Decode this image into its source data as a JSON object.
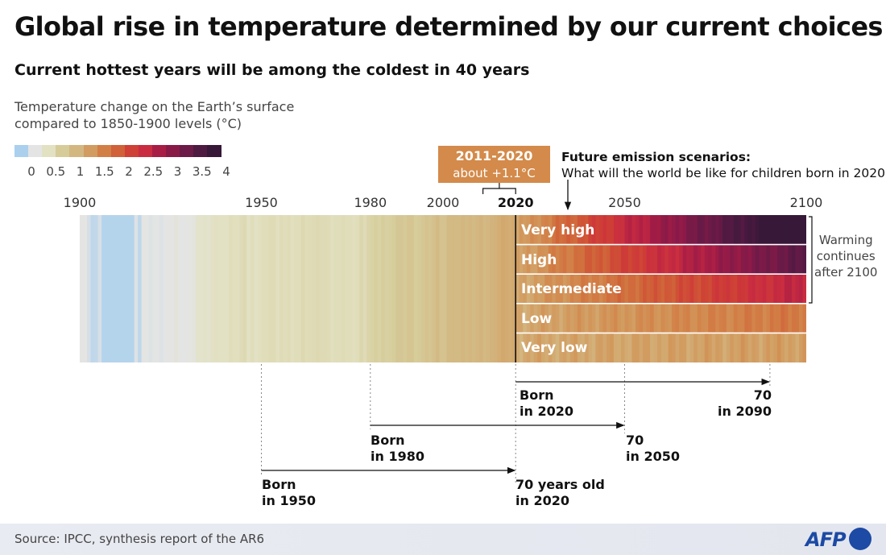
{
  "title": "Global rise in temperature determined by our current choices",
  "subtitle": "Current hottest years will be among the coldest in 40 years",
  "unit_label": [
    "Temperature change on the Earth’s surface",
    "compared to 1850-1900 levels (°C)"
  ],
  "legend": {
    "ticks": [
      "0",
      "0.5",
      "1",
      "1.5",
      "2",
      "2.5",
      "3",
      "3.5",
      "4"
    ],
    "tick_values": [
      0,
      0.5,
      1,
      1.5,
      2,
      2.5,
      3,
      3.5,
      4
    ]
  },
  "callout_period": {
    "line1": "2011-2020",
    "line2": "about +1.1°C"
  },
  "future_note": {
    "line1": "Future emission scenarios:",
    "line2": "What will the world be like for children born in 2020?"
  },
  "year_axis": {
    "labels": [
      "1900",
      "1950",
      "1980",
      "2000",
      "2020",
      "2050",
      "2100"
    ],
    "values": [
      1900,
      1950,
      1980,
      2000,
      2020,
      2050,
      2100
    ],
    "highlight": "2020"
  },
  "scenario_note": [
    "Warming",
    "continues",
    "after 2100"
  ],
  "lifespans": [
    {
      "born_line1": "Born",
      "born_line2": "in 2020",
      "end_line1": "70",
      "end_line2": "in 2090"
    },
    {
      "born_line1": "Born",
      "born_line2": "in 1980",
      "end_line1": "70",
      "end_line2": "in 2050"
    },
    {
      "born_line1": "Born",
      "born_line2": "in 1950",
      "end_line1": "70 years old",
      "end_line2": "in 2020"
    }
  ],
  "footer": {
    "source": "Source: IPCC, synthesis report of the AR6",
    "logo_text": "AFP"
  },
  "colors": {
    "scale": [
      "#aad0ee",
      "#e4e4e4",
      "#e2e1c2",
      "#d6cc9a",
      "#d3b781",
      "#d29b5f",
      "#d27f46",
      "#d06138",
      "#cf4036",
      "#c92c40",
      "#a81d45",
      "#891a48",
      "#6c1a47",
      "#4f1a42",
      "#371838"
    ],
    "period_box": "#d38a4a",
    "logo": "#1c4aa4"
  },
  "chart_data": {
    "type": "heatmap",
    "title": "Global rise in temperature determined by our current choices",
    "subtitle": "Current hottest years will be among the coldest in 40 years",
    "xlabel": "",
    "ylabel": "Temperature change on the Earth’s surface compared to 1850-1900 levels (°C)",
    "xlim": [
      1900,
      2100
    ],
    "color_range": [
      0,
      4
    ],
    "observed": {
      "start_year": 1900,
      "values": [
        0.3,
        0.3,
        0.22,
        0.1,
        0.12,
        0.22,
        0.05,
        0.05,
        0.05,
        0.05,
        0.05,
        0.05,
        0.05,
        0.05,
        0.05,
        0.25,
        0.1,
        0.3,
        0.28,
        0.25,
        0.28,
        0.28,
        0.25,
        0.28,
        0.3,
        0.3,
        0.38,
        0.3,
        0.28,
        0.3,
        0.32,
        0.35,
        0.5,
        0.5,
        0.52,
        0.48,
        0.55,
        0.58,
        0.55,
        0.56,
        0.55,
        0.62,
        0.6,
        0.6,
        0.65,
        0.68,
        0.55,
        0.62,
        0.55,
        0.6,
        0.62,
        0.62,
        0.65,
        0.65,
        0.6,
        0.65,
        0.62,
        0.65,
        0.6,
        0.63,
        0.62,
        0.7,
        0.64,
        0.65,
        0.66,
        0.7,
        0.66,
        0.66,
        0.65,
        0.6,
        0.63,
        0.62,
        0.65,
        0.63,
        0.62,
        0.6,
        0.63,
        0.72,
        0.65,
        0.75,
        0.78,
        0.82,
        0.78,
        0.85,
        0.8,
        0.82,
        0.85,
        0.92,
        0.92,
        0.88,
        0.95,
        0.95,
        0.85,
        0.88,
        0.92,
        1.0,
        0.95,
        1.02,
        1.1,
        0.98,
        1.0,
        1.1,
        1.12,
        1.12,
        1.1,
        1.15,
        1.12,
        1.15,
        1.1,
        1.15,
        1.18,
        1.12,
        1.15,
        1.18,
        1.2,
        1.25,
        1.3,
        1.28,
        1.25,
        1.3
      ]
    },
    "scenarios": {
      "start_year": 2020,
      "end_year": 2100,
      "series": [
        {
          "name": "Very high",
          "start": 1.3,
          "end": 4.4
        },
        {
          "name": "High",
          "start": 1.3,
          "end": 3.6
        },
        {
          "name": "Intermediate",
          "start": 1.3,
          "end": 2.7
        },
        {
          "name": "Low",
          "start": 1.3,
          "end": 1.8
        },
        {
          "name": "Very low",
          "start": 1.3,
          "end": 1.4
        }
      ]
    },
    "annotations": [
      {
        "text": "2011-2020 about +1.1°C",
        "x": [
          2011,
          2020
        ]
      },
      {
        "text": "Born in 1950 → 70 years old in 2020",
        "x": [
          1950,
          2020
        ]
      },
      {
        "text": "Born in 1980 → 70 in 2050",
        "x": [
          1980,
          2050
        ]
      },
      {
        "text": "Born in 2020 → 70 in 2090",
        "x": [
          2020,
          2090
        ]
      }
    ]
  }
}
